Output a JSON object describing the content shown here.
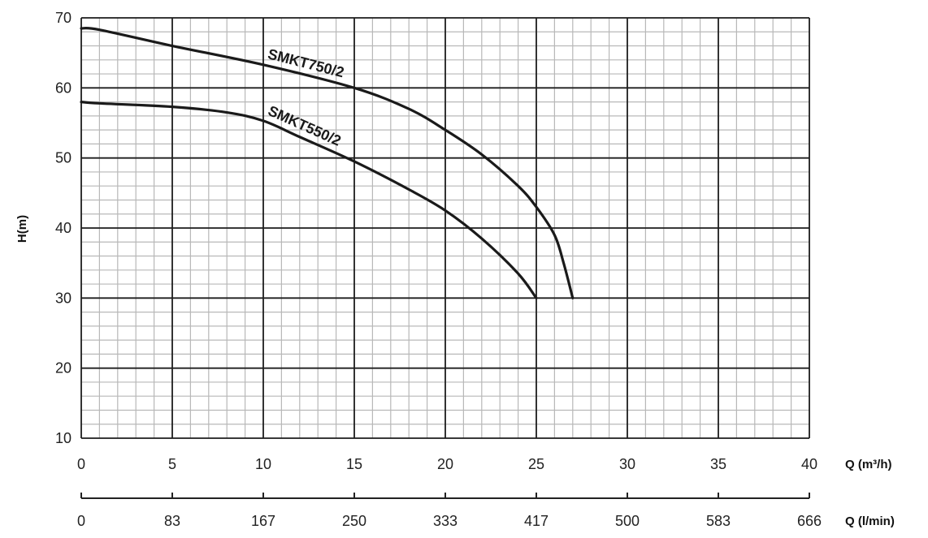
{
  "chart_data": {
    "type": "line",
    "ylabel": "H(m)",
    "xlabel": "Q (m³/h)",
    "x2label": "Q (l/min)",
    "xlim": [
      0,
      40
    ],
    "ylim": [
      10,
      70
    ],
    "x_ticks": [
      "0",
      "5",
      "10",
      "15",
      "20",
      "25",
      "30",
      "35",
      "40"
    ],
    "x2_ticks": [
      "0",
      "83",
      "167",
      "250",
      "333",
      "417",
      "500",
      "583",
      "666"
    ],
    "y_ticks": [
      "10",
      "20",
      "30",
      "40",
      "50",
      "60",
      "70"
    ],
    "grid": true,
    "series": [
      {
        "name": "SMKT750/2",
        "color": "#1a1a1a",
        "x": [
          0,
          1,
          5,
          10,
          15,
          18,
          20,
          22,
          24,
          25,
          26,
          26.5,
          27
        ],
        "y": [
          68.5,
          68.3,
          66.0,
          63.3,
          60.0,
          57.0,
          54.0,
          50.5,
          46.0,
          43.0,
          39.0,
          35.0,
          30.0
        ]
      },
      {
        "name": "SMKT550/2",
        "color": "#1a1a1a",
        "x": [
          0,
          1,
          5,
          8,
          10,
          12,
          15,
          18,
          20,
          22,
          24,
          25
        ],
        "y": [
          58.0,
          57.8,
          57.3,
          56.5,
          55.3,
          53.0,
          49.5,
          45.5,
          42.5,
          38.5,
          33.5,
          30.0
        ]
      }
    ]
  }
}
